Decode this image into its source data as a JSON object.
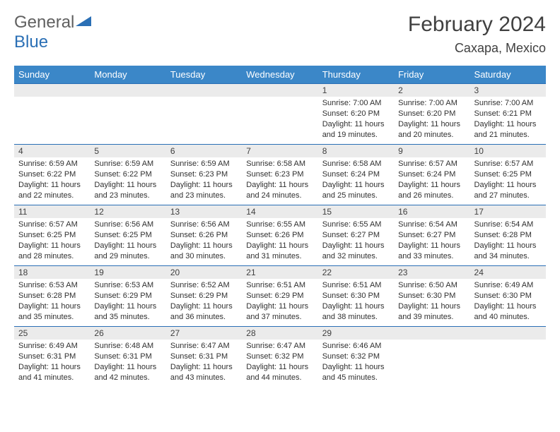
{
  "logo": {
    "word1": "General",
    "word2": "Blue"
  },
  "title": "February 2024",
  "location": "Caxapa, Mexico",
  "header_color": "#3b87c8",
  "daynum_bg": "#ebebeb",
  "border_color": "#2a6fb5",
  "days_of_week": [
    "Sunday",
    "Monday",
    "Tuesday",
    "Wednesday",
    "Thursday",
    "Friday",
    "Saturday"
  ],
  "weeks": [
    [
      null,
      null,
      null,
      null,
      {
        "n": "1",
        "sr": "Sunrise: 7:00 AM",
        "ss": "Sunset: 6:20 PM",
        "dl": "Daylight: 11 hours and 19 minutes."
      },
      {
        "n": "2",
        "sr": "Sunrise: 7:00 AM",
        "ss": "Sunset: 6:20 PM",
        "dl": "Daylight: 11 hours and 20 minutes."
      },
      {
        "n": "3",
        "sr": "Sunrise: 7:00 AM",
        "ss": "Sunset: 6:21 PM",
        "dl": "Daylight: 11 hours and 21 minutes."
      }
    ],
    [
      {
        "n": "4",
        "sr": "Sunrise: 6:59 AM",
        "ss": "Sunset: 6:22 PM",
        "dl": "Daylight: 11 hours and 22 minutes."
      },
      {
        "n": "5",
        "sr": "Sunrise: 6:59 AM",
        "ss": "Sunset: 6:22 PM",
        "dl": "Daylight: 11 hours and 23 minutes."
      },
      {
        "n": "6",
        "sr": "Sunrise: 6:59 AM",
        "ss": "Sunset: 6:23 PM",
        "dl": "Daylight: 11 hours and 23 minutes."
      },
      {
        "n": "7",
        "sr": "Sunrise: 6:58 AM",
        "ss": "Sunset: 6:23 PM",
        "dl": "Daylight: 11 hours and 24 minutes."
      },
      {
        "n": "8",
        "sr": "Sunrise: 6:58 AM",
        "ss": "Sunset: 6:24 PM",
        "dl": "Daylight: 11 hours and 25 minutes."
      },
      {
        "n": "9",
        "sr": "Sunrise: 6:57 AM",
        "ss": "Sunset: 6:24 PM",
        "dl": "Daylight: 11 hours and 26 minutes."
      },
      {
        "n": "10",
        "sr": "Sunrise: 6:57 AM",
        "ss": "Sunset: 6:25 PM",
        "dl": "Daylight: 11 hours and 27 minutes."
      }
    ],
    [
      {
        "n": "11",
        "sr": "Sunrise: 6:57 AM",
        "ss": "Sunset: 6:25 PM",
        "dl": "Daylight: 11 hours and 28 minutes."
      },
      {
        "n": "12",
        "sr": "Sunrise: 6:56 AM",
        "ss": "Sunset: 6:25 PM",
        "dl": "Daylight: 11 hours and 29 minutes."
      },
      {
        "n": "13",
        "sr": "Sunrise: 6:56 AM",
        "ss": "Sunset: 6:26 PM",
        "dl": "Daylight: 11 hours and 30 minutes."
      },
      {
        "n": "14",
        "sr": "Sunrise: 6:55 AM",
        "ss": "Sunset: 6:26 PM",
        "dl": "Daylight: 11 hours and 31 minutes."
      },
      {
        "n": "15",
        "sr": "Sunrise: 6:55 AM",
        "ss": "Sunset: 6:27 PM",
        "dl": "Daylight: 11 hours and 32 minutes."
      },
      {
        "n": "16",
        "sr": "Sunrise: 6:54 AM",
        "ss": "Sunset: 6:27 PM",
        "dl": "Daylight: 11 hours and 33 minutes."
      },
      {
        "n": "17",
        "sr": "Sunrise: 6:54 AM",
        "ss": "Sunset: 6:28 PM",
        "dl": "Daylight: 11 hours and 34 minutes."
      }
    ],
    [
      {
        "n": "18",
        "sr": "Sunrise: 6:53 AM",
        "ss": "Sunset: 6:28 PM",
        "dl": "Daylight: 11 hours and 35 minutes."
      },
      {
        "n": "19",
        "sr": "Sunrise: 6:53 AM",
        "ss": "Sunset: 6:29 PM",
        "dl": "Daylight: 11 hours and 35 minutes."
      },
      {
        "n": "20",
        "sr": "Sunrise: 6:52 AM",
        "ss": "Sunset: 6:29 PM",
        "dl": "Daylight: 11 hours and 36 minutes."
      },
      {
        "n": "21",
        "sr": "Sunrise: 6:51 AM",
        "ss": "Sunset: 6:29 PM",
        "dl": "Daylight: 11 hours and 37 minutes."
      },
      {
        "n": "22",
        "sr": "Sunrise: 6:51 AM",
        "ss": "Sunset: 6:30 PM",
        "dl": "Daylight: 11 hours and 38 minutes."
      },
      {
        "n": "23",
        "sr": "Sunrise: 6:50 AM",
        "ss": "Sunset: 6:30 PM",
        "dl": "Daylight: 11 hours and 39 minutes."
      },
      {
        "n": "24",
        "sr": "Sunrise: 6:49 AM",
        "ss": "Sunset: 6:30 PM",
        "dl": "Daylight: 11 hours and 40 minutes."
      }
    ],
    [
      {
        "n": "25",
        "sr": "Sunrise: 6:49 AM",
        "ss": "Sunset: 6:31 PM",
        "dl": "Daylight: 11 hours and 41 minutes."
      },
      {
        "n": "26",
        "sr": "Sunrise: 6:48 AM",
        "ss": "Sunset: 6:31 PM",
        "dl": "Daylight: 11 hours and 42 minutes."
      },
      {
        "n": "27",
        "sr": "Sunrise: 6:47 AM",
        "ss": "Sunset: 6:31 PM",
        "dl": "Daylight: 11 hours and 43 minutes."
      },
      {
        "n": "28",
        "sr": "Sunrise: 6:47 AM",
        "ss": "Sunset: 6:32 PM",
        "dl": "Daylight: 11 hours and 44 minutes."
      },
      {
        "n": "29",
        "sr": "Sunrise: 6:46 AM",
        "ss": "Sunset: 6:32 PM",
        "dl": "Daylight: 11 hours and 45 minutes."
      },
      null,
      null
    ]
  ]
}
